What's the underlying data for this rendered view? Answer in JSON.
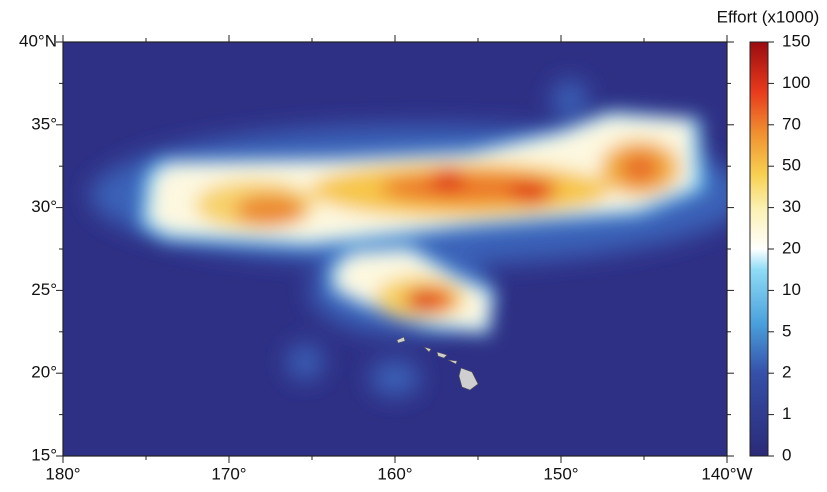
{
  "map": {
    "lon_labels": [
      "180°",
      "170°",
      "160°",
      "150°",
      "140°W"
    ],
    "lat_labels": [
      "40°N",
      "35°",
      "30°",
      "25°",
      "20°",
      "15°"
    ]
  },
  "colorbar": {
    "title": "Effort (x1000)",
    "labels": [
      "150",
      "100",
      "70",
      "50",
      "30",
      "20",
      "10",
      "5",
      "2",
      "1",
      "0"
    ]
  }
}
